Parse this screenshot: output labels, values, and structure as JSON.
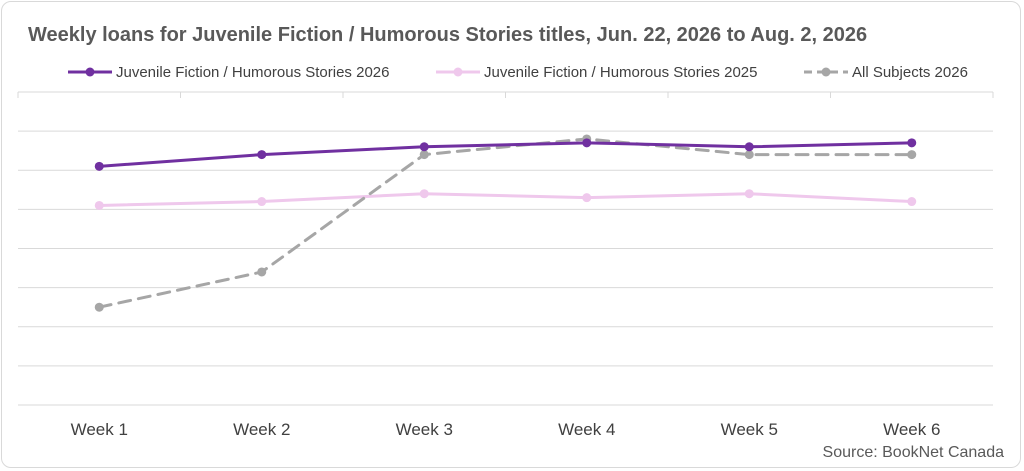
{
  "chart_data": {
    "type": "line",
    "title": "Weekly loans for Juvenile Fiction / Humorous Stories titles, Jun. 22, 2026 to Aug. 2, 2026",
    "categories": [
      "Week 1",
      "Week 2",
      "Week 3",
      "Week 4",
      "Week 5",
      "Week 6"
    ],
    "ylim": [
      0,
      80
    ],
    "grid": true,
    "legend_position": "top",
    "series": [
      {
        "name": "Juvenile Fiction / Humorous Stories 2026",
        "values": [
          61,
          64,
          66,
          67,
          66,
          67
        ],
        "color": "#7030a0",
        "dashed": false
      },
      {
        "name": "Juvenile Fiction / Humorous Stories 2025",
        "values": [
          51,
          52,
          54,
          53,
          54,
          52
        ],
        "color": "#efc8ec",
        "dashed": false
      },
      {
        "name": "All Subjects 2026",
        "values": [
          25,
          34,
          64,
          68,
          64,
          64
        ],
        "color": "#a6a6a6",
        "dashed": true
      }
    ],
    "source": "Source: BookNet Canada"
  }
}
